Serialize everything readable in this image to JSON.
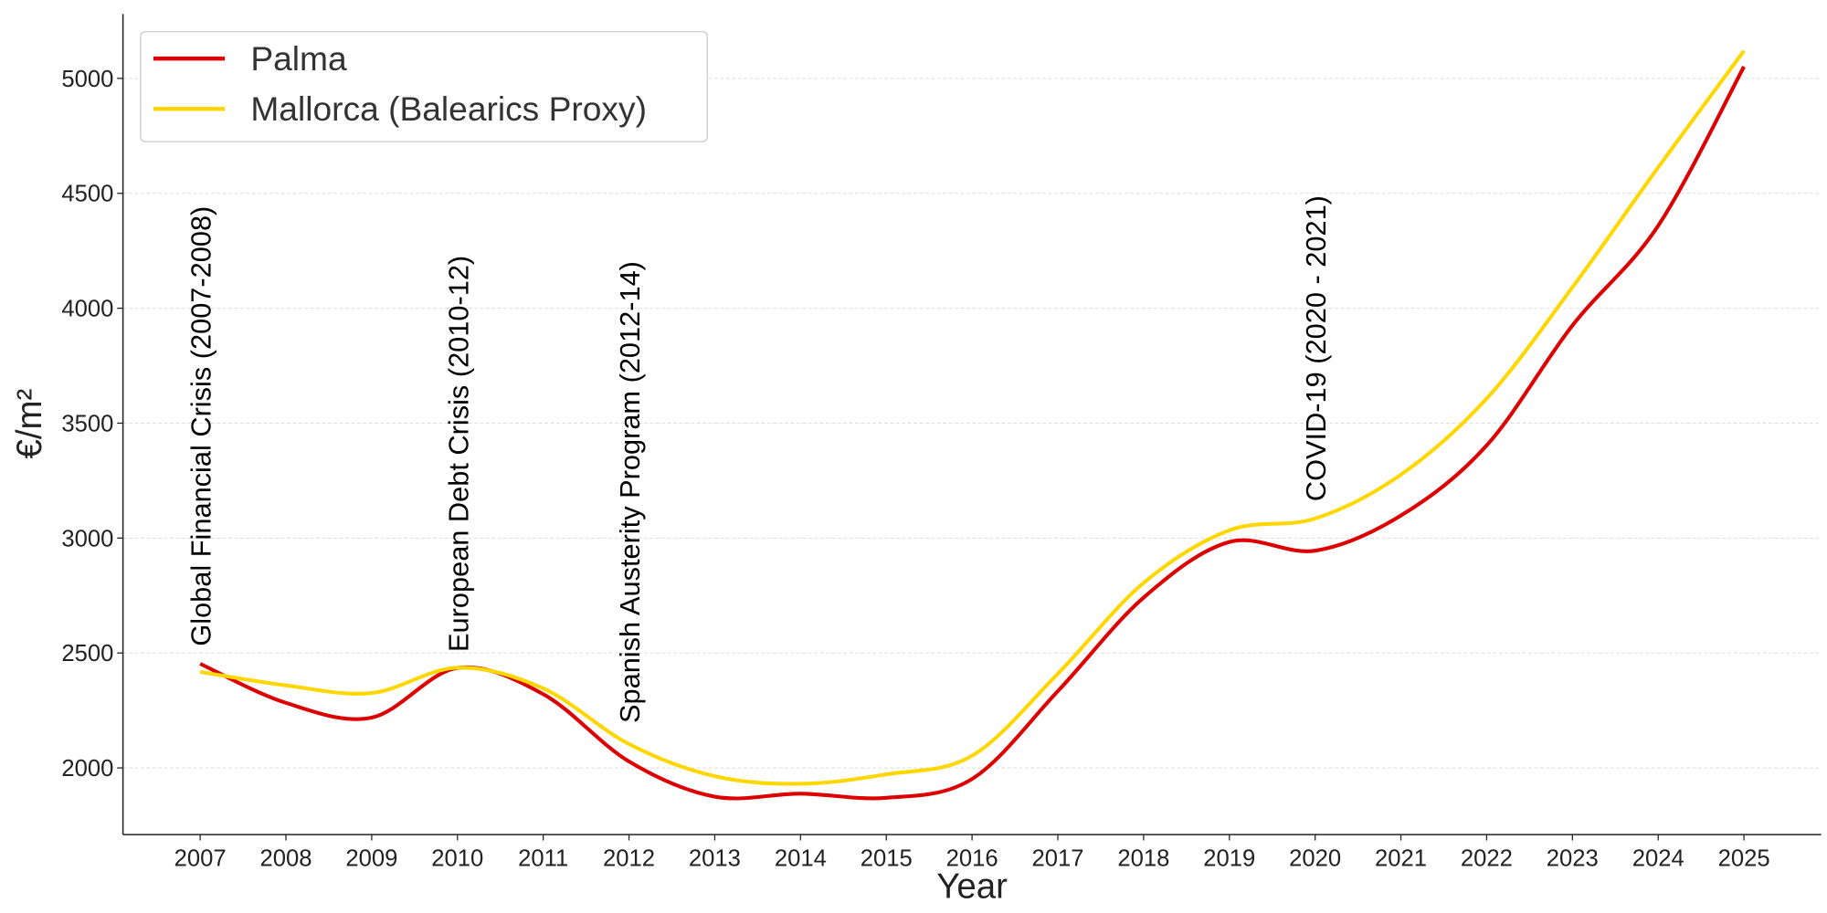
{
  "chart_data": {
    "type": "line",
    "title": "",
    "xlabel": "Year",
    "ylabel": "€/m²",
    "xlim": [
      2006.1,
      2025.9
    ],
    "ylim": [
      1710,
      5280
    ],
    "x": [
      2007,
      2008,
      2009,
      2010,
      2011,
      2012,
      2013,
      2014,
      2015,
      2016,
      2017,
      2018,
      2019,
      2020,
      2021,
      2022,
      2023,
      2024,
      2025
    ],
    "xticks": [
      "2007",
      "2008",
      "2009",
      "2010",
      "2011",
      "2012",
      "2013",
      "2014",
      "2015",
      "2016",
      "2017",
      "2018",
      "2019",
      "2020",
      "2021",
      "2022",
      "2023",
      "2024",
      "2025"
    ],
    "yticks": [
      2000,
      2500,
      3000,
      3500,
      4000,
      4500,
      5000
    ],
    "grid": "horizontal, dashed",
    "legend_placement": "upper-left",
    "series": [
      {
        "name": "Palma",
        "color": "#dd0000",
        "values": [
          2453,
          2283,
          2219,
          2435,
          2321,
          2028,
          1875,
          1888,
          1870,
          1952,
          2334,
          2741,
          2983,
          2945,
          3098,
          3403,
          3925,
          4359,
          5051
        ]
      },
      {
        "name": "Mallorca (Balearics Proxy)",
        "color": "#ffd700",
        "values": [
          2418,
          2359,
          2326,
          2436,
          2346,
          2104,
          1964,
          1931,
          1972,
          2053,
          2410,
          2805,
          3034,
          3085,
          3276,
          3607,
          4091,
          4613,
          5120
        ]
      }
    ],
    "annotations": [
      {
        "text": "Global Financial Crisis (2007-2008)",
        "x": 2007,
        "y": 2530
      },
      {
        "text": "European Debt Crisis (2010-12)",
        "x": 2010,
        "y": 2505
      },
      {
        "text": "Spanish Austerity Program (2012-14)",
        "x": 2012,
        "y": 2195
      },
      {
        "text": "COVID-19 (2020 - 2021)",
        "x": 2020,
        "y": 3160
      }
    ]
  }
}
